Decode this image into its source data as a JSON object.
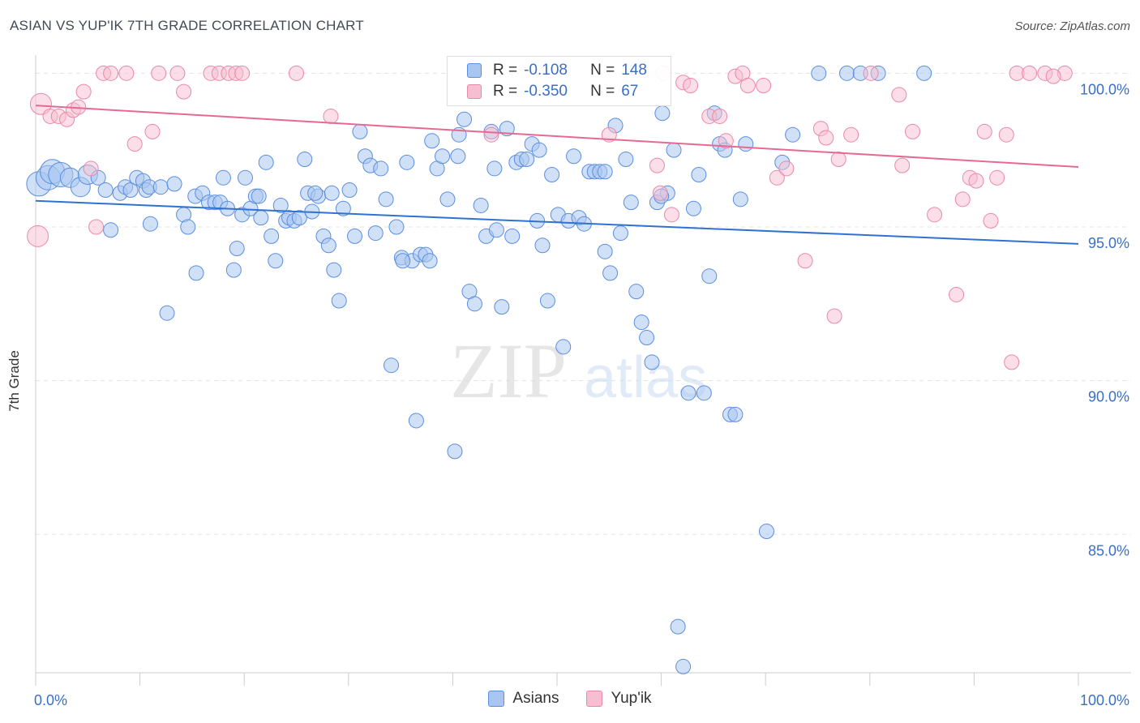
{
  "header": {
    "title": "ASIAN VS YUP'IK 7TH GRADE CORRELATION CHART",
    "source": "Source: ZipAtlas.com"
  },
  "watermark": {
    "zip": "ZIP",
    "atlas": "atlas"
  },
  "legend_top": [
    {
      "r_label": "R =",
      "r_value": "-0.108",
      "n_label": "N =",
      "n_value": "148"
    },
    {
      "r_label": "R =",
      "r_value": "-0.350",
      "n_label": "N =",
      "n_value": "67"
    }
  ],
  "colors": {
    "asians_fill": "#a9c6f0",
    "asians_stroke": "#5b8ee0",
    "asians_line": "#2f72d0",
    "yupik_fill": "#f7bdd0",
    "yupik_stroke": "#ea88a8",
    "yupik_line": "#e56a93",
    "tick_text": "#3a6fc4",
    "grid": "#e3e3e3"
  },
  "chart_data": {
    "type": "scatter",
    "xlabel": "",
    "ylabel": "7th Grade",
    "xlim": [
      0,
      100
    ],
    "ylim": [
      80.5,
      100.8
    ],
    "x_tick_labels": [
      {
        "value": 0,
        "label": "0.0%"
      },
      {
        "value": 100,
        "label": "100.0%"
      }
    ],
    "y_tick_labels": [
      {
        "value": 100,
        "label": "100.0%"
      },
      {
        "value": 95,
        "label": "95.0%"
      },
      {
        "value": 90,
        "label": "90.0%"
      },
      {
        "value": 85,
        "label": "85.0%"
      }
    ],
    "series": [
      {
        "name": "Asians",
        "trend": {
          "x": [
            0,
            100
          ],
          "y": [
            95.85,
            94.45
          ]
        },
        "points": [
          [
            0.3,
            96.4
          ],
          [
            1.2,
            96.6
          ],
          [
            1.6,
            96.8
          ],
          [
            2.4,
            96.7
          ],
          [
            3.3,
            96.6
          ],
          [
            4.3,
            96.3
          ],
          [
            5.0,
            96.7
          ],
          [
            6.0,
            96.6
          ],
          [
            6.7,
            96.2
          ],
          [
            7.2,
            94.9
          ],
          [
            8.1,
            96.1
          ],
          [
            8.6,
            96.3
          ],
          [
            9.1,
            96.2
          ],
          [
            9.7,
            96.6
          ],
          [
            10.3,
            96.5
          ],
          [
            10.6,
            96.2
          ],
          [
            10.9,
            96.3
          ],
          [
            11.0,
            95.1
          ],
          [
            12.0,
            96.3
          ],
          [
            12.6,
            92.2
          ],
          [
            13.3,
            96.4
          ],
          [
            14.2,
            95.4
          ],
          [
            14.6,
            95.0
          ],
          [
            15.3,
            96.0
          ],
          [
            15.4,
            93.5
          ],
          [
            16.0,
            96.1
          ],
          [
            16.6,
            95.8
          ],
          [
            17.2,
            95.8
          ],
          [
            17.7,
            95.8
          ],
          [
            18.0,
            96.6
          ],
          [
            18.4,
            95.6
          ],
          [
            19.0,
            93.6
          ],
          [
            19.3,
            94.3
          ],
          [
            19.8,
            95.4
          ],
          [
            20.1,
            96.6
          ],
          [
            20.6,
            95.6
          ],
          [
            21.1,
            96.0
          ],
          [
            21.6,
            95.3
          ],
          [
            22.1,
            97.1
          ],
          [
            22.6,
            94.7
          ],
          [
            23.0,
            93.9
          ],
          [
            23.5,
            95.7
          ],
          [
            24.0,
            95.2
          ],
          [
            24.3,
            95.3
          ],
          [
            24.8,
            95.2
          ],
          [
            25.3,
            95.3
          ],
          [
            25.8,
            97.2
          ],
          [
            26.1,
            96.1
          ],
          [
            26.5,
            95.5
          ],
          [
            27.1,
            96.0
          ],
          [
            27.6,
            94.7
          ],
          [
            28.1,
            94.4
          ],
          [
            28.6,
            93.6
          ],
          [
            29.1,
            92.6
          ],
          [
            29.5,
            95.6
          ],
          [
            30.1,
            96.2
          ],
          [
            30.6,
            94.7
          ],
          [
            31.1,
            98.1
          ],
          [
            31.6,
            97.3
          ],
          [
            32.1,
            97.0
          ],
          [
            32.6,
            94.8
          ],
          [
            33.1,
            96.9
          ],
          [
            33.6,
            95.9
          ],
          [
            34.1,
            90.5
          ],
          [
            34.6,
            95.0
          ],
          [
            35.1,
            94.0
          ],
          [
            35.6,
            97.1
          ],
          [
            36.1,
            93.9
          ],
          [
            36.5,
            88.7
          ],
          [
            36.9,
            94.1
          ],
          [
            37.4,
            94.1
          ],
          [
            38.0,
            97.8
          ],
          [
            38.5,
            96.9
          ],
          [
            39.0,
            97.3
          ],
          [
            39.5,
            95.9
          ],
          [
            40.2,
            87.7
          ],
          [
            40.6,
            98.0
          ],
          [
            41.1,
            98.5
          ],
          [
            41.6,
            92.9
          ],
          [
            42.1,
            92.5
          ],
          [
            42.7,
            95.7
          ],
          [
            43.2,
            94.7
          ],
          [
            43.7,
            98.1
          ],
          [
            44.2,
            94.9
          ],
          [
            44.7,
            92.4
          ],
          [
            45.2,
            98.2
          ],
          [
            45.7,
            94.7
          ],
          [
            46.1,
            97.1
          ],
          [
            46.6,
            97.2
          ],
          [
            47.1,
            97.2
          ],
          [
            47.6,
            97.7
          ],
          [
            48.1,
            95.2
          ],
          [
            48.6,
            94.4
          ],
          [
            49.1,
            92.6
          ],
          [
            49.5,
            96.7
          ],
          [
            50.1,
            95.4
          ],
          [
            50.6,
            91.1
          ],
          [
            51.1,
            95.2
          ],
          [
            51.6,
            97.3
          ],
          [
            52.1,
            95.3
          ],
          [
            52.6,
            95.1
          ],
          [
            53.1,
            96.8
          ],
          [
            53.6,
            96.8
          ],
          [
            54.1,
            96.8
          ],
          [
            54.6,
            94.2
          ],
          [
            55.1,
            93.5
          ],
          [
            55.6,
            98.3
          ],
          [
            56.1,
            94.8
          ],
          [
            56.6,
            97.2
          ],
          [
            57.1,
            95.8
          ],
          [
            57.6,
            92.9
          ],
          [
            58.1,
            91.9
          ],
          [
            58.6,
            91.4
          ],
          [
            59.1,
            90.6
          ],
          [
            59.6,
            95.8
          ],
          [
            60.1,
            98.7
          ],
          [
            60.6,
            96.1
          ],
          [
            61.6,
            82.0
          ],
          [
            62.1,
            80.7
          ],
          [
            62.6,
            89.6
          ],
          [
            63.1,
            95.6
          ],
          [
            63.6,
            96.7
          ],
          [
            64.1,
            89.6
          ],
          [
            64.6,
            93.4
          ],
          [
            65.1,
            98.7
          ],
          [
            65.6,
            97.7
          ],
          [
            66.1,
            97.5
          ],
          [
            66.6,
            88.9
          ],
          [
            67.1,
            88.9
          ],
          [
            67.6,
            95.9
          ],
          [
            68.1,
            97.7
          ],
          [
            70.1,
            85.1
          ],
          [
            71.6,
            97.1
          ],
          [
            72.6,
            98.0
          ],
          [
            75.1,
            100.0
          ],
          [
            77.8,
            100.0
          ],
          [
            79.1,
            100.0
          ],
          [
            80.8,
            100.0
          ],
          [
            85.2,
            100.0
          ],
          [
            40.5,
            97.3
          ],
          [
            37.8,
            93.9
          ],
          [
            35.2,
            93.9
          ],
          [
            28.4,
            96.1
          ],
          [
            26.8,
            96.1
          ],
          [
            21.4,
            96.0
          ],
          [
            44.0,
            96.9
          ],
          [
            48.3,
            97.5
          ],
          [
            54.6,
            96.8
          ],
          [
            60.0,
            96.0
          ],
          [
            61.2,
            97.5
          ]
        ]
      },
      {
        "name": "Yup'ik",
        "trend": {
          "x": [
            0,
            100
          ],
          "y": [
            98.95,
            96.95
          ]
        },
        "points": [
          [
            0.2,
            94.7
          ],
          [
            0.5,
            99.0
          ],
          [
            1.4,
            98.6
          ],
          [
            2.2,
            98.6
          ],
          [
            3.0,
            98.5
          ],
          [
            3.6,
            98.8
          ],
          [
            4.1,
            98.9
          ],
          [
            4.6,
            99.4
          ],
          [
            5.3,
            96.9
          ],
          [
            5.8,
            95.0
          ],
          [
            6.5,
            100.0
          ],
          [
            7.2,
            100.0
          ],
          [
            8.7,
            100.0
          ],
          [
            9.5,
            97.7
          ],
          [
            11.2,
            98.1
          ],
          [
            11.8,
            100.0
          ],
          [
            13.6,
            100.0
          ],
          [
            14.2,
            99.4
          ],
          [
            16.8,
            100.0
          ],
          [
            17.6,
            100.0
          ],
          [
            18.5,
            100.0
          ],
          [
            19.2,
            100.0
          ],
          [
            19.8,
            100.0
          ],
          [
            25.0,
            100.0
          ],
          [
            28.3,
            98.6
          ],
          [
            43.7,
            98.0
          ],
          [
            55.0,
            98.0
          ],
          [
            59.6,
            97.0
          ],
          [
            59.9,
            96.1
          ],
          [
            60.2,
            100.0
          ],
          [
            61.0,
            95.4
          ],
          [
            62.1,
            99.7
          ],
          [
            62.8,
            99.6
          ],
          [
            64.6,
            98.6
          ],
          [
            65.6,
            98.6
          ],
          [
            66.2,
            97.8
          ],
          [
            67.1,
            99.9
          ],
          [
            67.8,
            100.0
          ],
          [
            68.3,
            99.6
          ],
          [
            69.8,
            99.6
          ],
          [
            71.1,
            96.6
          ],
          [
            72.0,
            96.9
          ],
          [
            73.8,
            93.9
          ],
          [
            75.3,
            98.2
          ],
          [
            75.8,
            97.9
          ],
          [
            76.6,
            92.1
          ],
          [
            77.0,
            97.2
          ],
          [
            78.2,
            98.0
          ],
          [
            80.1,
            100.0
          ],
          [
            82.8,
            99.3
          ],
          [
            83.1,
            97.0
          ],
          [
            84.1,
            98.1
          ],
          [
            86.2,
            95.4
          ],
          [
            88.3,
            92.8
          ],
          [
            88.9,
            95.9
          ],
          [
            89.6,
            96.6
          ],
          [
            90.2,
            96.5
          ],
          [
            91.0,
            98.1
          ],
          [
            91.6,
            95.2
          ],
          [
            92.2,
            96.6
          ],
          [
            93.1,
            98.0
          ],
          [
            93.6,
            90.6
          ],
          [
            94.1,
            100.0
          ],
          [
            95.3,
            100.0
          ],
          [
            96.8,
            100.0
          ],
          [
            98.7,
            100.0
          ],
          [
            97.6,
            99.9
          ]
        ]
      }
    ]
  },
  "legend_bottom": [
    {
      "label": "Asians"
    },
    {
      "label": "Yup'ik"
    }
  ]
}
